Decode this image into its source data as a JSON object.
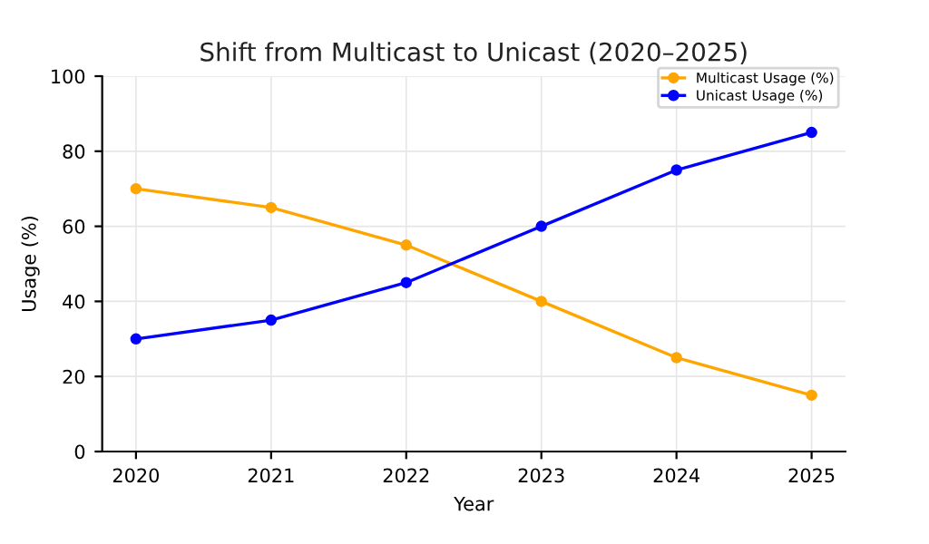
{
  "chart_data": {
    "type": "line",
    "title": "Shift from Multicast to Unicast (2020–2025)",
    "xlabel": "Year",
    "ylabel": "Usage (%)",
    "x": [
      2020,
      2021,
      2022,
      2023,
      2024,
      2025
    ],
    "series": [
      {
        "name": "Multicast Usage (%)",
        "color": "#ffa500",
        "values": [
          70,
          65,
          55,
          40,
          25,
          15
        ]
      },
      {
        "name": "Unicast Usage (%)",
        "color": "#0000ff",
        "values": [
          30,
          35,
          45,
          60,
          75,
          85
        ]
      }
    ],
    "xlim": [
      2019.75,
      2025.25
    ],
    "xticks": [
      2020,
      2021,
      2022,
      2023,
      2024,
      2025
    ],
    "ylim": [
      0,
      100
    ],
    "yticks": [
      0,
      20,
      40,
      60,
      80,
      100
    ],
    "grid": true,
    "legend": "top right",
    "marker": "circle",
    "line_style": "solid"
  }
}
